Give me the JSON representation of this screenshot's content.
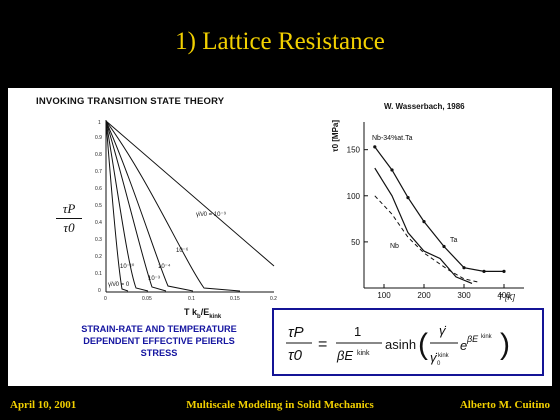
{
  "slide": {
    "title": "1) Lattice Resistance"
  },
  "left_figure": {
    "heading": "INVOKING TRANSITION STATE THEORY",
    "ylabel_num": "τP",
    "ylabel_den": "τ0",
    "xlabel_main": "T k",
    "xlabel_sub_b": "b",
    "xlabel_mid": "/E",
    "xlabel_sub_kink": "kink",
    "caption_line1": "STRAIN-RATE AND TEMPERATURE",
    "caption_line2": "DEPENDENT EFFECTIVE PEIERLS",
    "caption_line3": "STRESS",
    "curve_labels": [
      "γ̇/ν̇0 = 10⁻⁹",
      "10⁻⁶",
      "10⁻⁴",
      "10⁻³",
      "10⁻¹⁰",
      "γ̇/ν̇0 = 0"
    ]
  },
  "chart_data": {
    "type": "line",
    "title": "W. Wasserbach, 1986",
    "ylabel": "τ0 [MPa]",
    "xlabel": "T [K]",
    "xlim": [
      50,
      450
    ],
    "ylim": [
      0,
      180
    ],
    "x_ticks": [
      100,
      200,
      300,
      400
    ],
    "y_ticks": [
      50,
      100,
      150
    ],
    "annotations": [
      "Nb-34%at.Ta",
      "Nb",
      "Ta"
    ],
    "series": [
      {
        "name": "Nb-34%at.Ta",
        "x": [
          77,
          120,
          160,
          200,
          250,
          300,
          350,
          400
        ],
        "y": [
          153,
          128,
          98,
          72,
          45,
          22,
          18,
          18
        ]
      },
      {
        "name": "Nb",
        "x": [
          77,
          120,
          160,
          200,
          240,
          280,
          320
        ],
        "y": [
          130,
          100,
          60,
          40,
          32,
          12,
          5
        ]
      },
      {
        "name": "Ta",
        "x": [
          77,
          120,
          160,
          200,
          260,
          300,
          340
        ],
        "y": [
          100,
          80,
          55,
          38,
          20,
          10,
          6
        ]
      }
    ]
  },
  "formula": {
    "lhs_num": "τP",
    "lhs_den": "τ0",
    "rhs_text": "1/(βEkink) asinh( γ̇/γ̇0kink · e^(βEkink) )"
  },
  "footer": {
    "date": "April 10, 2001",
    "course": "Multiscale Modeling in Solid Mechanics",
    "author": "Alberto M. Cuitino"
  }
}
